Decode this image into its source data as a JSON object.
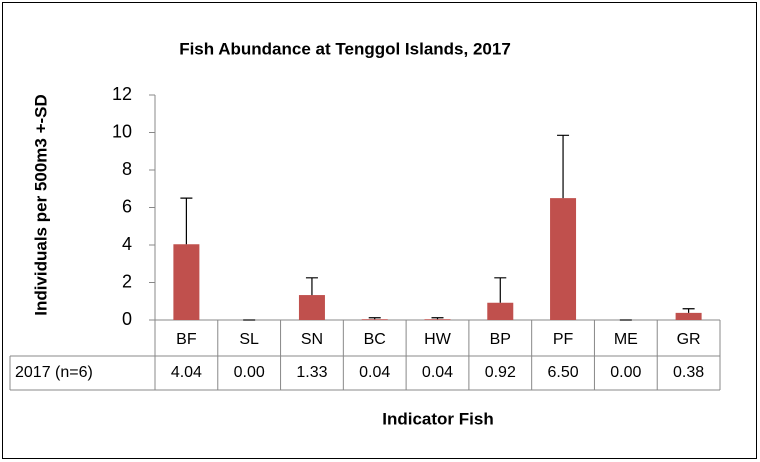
{
  "chart_data": {
    "type": "bar",
    "title": "Fish Abundance at Tenggol Islands, 2017",
    "x_label": "Indicator Fish",
    "y_label": "Individuals per  500m3 +-SD",
    "categories": [
      "BF",
      "SL",
      "SN",
      "BC",
      "HW",
      "BP",
      "PF",
      "ME",
      "GR"
    ],
    "series": [
      {
        "name": "2017 (n=6)",
        "color": "#c0504d",
        "values": [
          4.04,
          0,
          1.33,
          0.04,
          0.04,
          0.92,
          6.5,
          0,
          0.38
        ],
        "value_labels": [
          "4.04",
          "0.00",
          "1.33",
          "0.04",
          "0.04",
          "0.92",
          "6.50",
          "0.00",
          "0.38"
        ],
        "errors": [
          2.46,
          0,
          0.92,
          0.08,
          0.08,
          1.33,
          3.35,
          0,
          0.22
        ]
      }
    ],
    "ylim": [
      0,
      12
    ],
    "yticks": [
      0,
      2,
      4,
      6,
      8,
      10,
      12
    ],
    "grid": false
  }
}
